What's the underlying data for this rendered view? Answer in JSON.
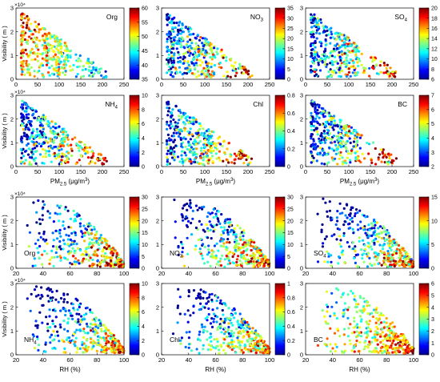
{
  "colormap": [
    "#00008f",
    "#0000ff",
    "#0080ff",
    "#00ffff",
    "#80ff80",
    "#ffff00",
    "#ff8000",
    "#ff0000",
    "#800000"
  ],
  "chart_data": [
    {
      "type": "scatter",
      "species": "Org",
      "xlabel": "",
      "ylabel": "Visibility ( m )",
      "y_exponent": "×10⁴",
      "xlim": [
        0,
        250
      ],
      "ylim": [
        0,
        30000
      ],
      "xticks": [
        "0",
        "50",
        "100",
        "150",
        "200",
        "250"
      ],
      "yticks": [
        "0",
        "1",
        "2",
        "3"
      ],
      "colorbar": {
        "range": [
          35,
          60
        ],
        "ticks": [
          "35",
          "40",
          "45",
          "50",
          "55",
          "60"
        ]
      }
    },
    {
      "type": "scatter",
      "species": "NO3",
      "xlabel": "",
      "ylabel": "",
      "y_exponent": "",
      "xlim": [
        0,
        250
      ],
      "ylim": [
        0,
        30000
      ],
      "xticks": [
        "0",
        "50",
        "100",
        "150",
        "200",
        "250"
      ],
      "yticks": [
        "0",
        "1",
        "2",
        "3"
      ],
      "colorbar": {
        "range": [
          0,
          35
        ],
        "ticks": [
          "0",
          "5",
          "10",
          "15",
          "20",
          "25",
          "30",
          "35"
        ]
      }
    },
    {
      "type": "scatter",
      "species": "SO4",
      "xlabel": "",
      "ylabel": "",
      "y_exponent": "",
      "xlim": [
        0,
        250
      ],
      "ylim": [
        0,
        30000
      ],
      "xticks": [
        "0",
        "50",
        "100",
        "150",
        "200",
        "250"
      ],
      "yticks": [
        "0",
        "1",
        "2",
        "3"
      ],
      "colorbar": {
        "range": [
          6,
          20
        ],
        "ticks": [
          "6",
          "8",
          "10",
          "12",
          "14",
          "16",
          "18",
          "20"
        ]
      }
    },
    {
      "type": "scatter",
      "species": "NH4",
      "xlabel": "PM2.5 (μg/m3)",
      "ylabel": "Visibility ( m )",
      "y_exponent": "×10⁴",
      "xlim": [
        0,
        250
      ],
      "ylim": [
        0,
        30000
      ],
      "xticks": [
        "0",
        "50",
        "100",
        "150",
        "200",
        "250"
      ],
      "yticks": [
        "0",
        "1",
        "2",
        "3"
      ],
      "colorbar": {
        "range": [
          0,
          10
        ],
        "ticks": [
          "0",
          "2",
          "4",
          "6",
          "8",
          "10"
        ]
      }
    },
    {
      "type": "scatter",
      "species": "Chl",
      "xlabel": "PM2.5 (μg/m3)",
      "ylabel": "",
      "y_exponent": "",
      "xlim": [
        0,
        250
      ],
      "ylim": [
        0,
        30000
      ],
      "xticks": [
        "0",
        "50",
        "100",
        "150",
        "200",
        "250"
      ],
      "yticks": [
        "0",
        "1",
        "2",
        "3"
      ],
      "colorbar": {
        "range": [
          0,
          0.8
        ],
        "ticks": [
          "0",
          "0.2",
          "0.4",
          "0.6",
          "0.8"
        ]
      }
    },
    {
      "type": "scatter",
      "species": "BC",
      "xlabel": "PM2.5 (μg/m3)",
      "ylabel": "",
      "y_exponent": "",
      "xlim": [
        0,
        250
      ],
      "ylim": [
        0,
        30000
      ],
      "xticks": [
        "0",
        "50",
        "100",
        "150",
        "200",
        "250"
      ],
      "yticks": [
        "0",
        "1",
        "2",
        "3"
      ],
      "colorbar": {
        "range": [
          2,
          7
        ],
        "ticks": [
          "2",
          "3",
          "4",
          "5",
          "6",
          "7"
        ]
      }
    },
    {
      "type": "scatter",
      "species": "Org",
      "xlabel": "",
      "ylabel": "Visibility ( m )",
      "y_exponent": "×10⁴",
      "xlim": [
        20,
        100
      ],
      "ylim": [
        0,
        30000
      ],
      "xticks": [
        "20",
        "40",
        "60",
        "80",
        "100"
      ],
      "yticks": [
        "0",
        "1",
        "2",
        "3"
      ],
      "colorbar": {
        "range": [
          0,
          30
        ],
        "ticks": [
          "0",
          "5",
          "10",
          "15",
          "20",
          "25",
          "30"
        ]
      }
    },
    {
      "type": "scatter",
      "species": "NO3",
      "xlabel": "",
      "ylabel": "",
      "y_exponent": "",
      "xlim": [
        20,
        100
      ],
      "ylim": [
        0,
        30000
      ],
      "xticks": [
        "20",
        "40",
        "60",
        "80",
        "100"
      ],
      "yticks": [
        "0",
        "1",
        "2",
        "3"
      ],
      "colorbar": {
        "range": [
          0,
          30
        ],
        "ticks": [
          "0",
          "5",
          "10",
          "15",
          "20",
          "25",
          "30"
        ]
      }
    },
    {
      "type": "scatter",
      "species": "SO4",
      "xlabel": "",
      "ylabel": "",
      "y_exponent": "",
      "xlim": [
        20,
        100
      ],
      "ylim": [
        0,
        30000
      ],
      "xticks": [
        "20",
        "40",
        "60",
        "80",
        "100"
      ],
      "yticks": [
        "0",
        "1",
        "2",
        "3"
      ],
      "colorbar": {
        "range": [
          0,
          15
        ],
        "ticks": [
          "0",
          "5",
          "10",
          "15"
        ]
      }
    },
    {
      "type": "scatter",
      "species": "NH4",
      "xlabel": "RH (%)",
      "ylabel": "Visibility ( m )",
      "y_exponent": "×10⁴",
      "xlim": [
        20,
        100
      ],
      "ylim": [
        0,
        30000
      ],
      "xticks": [
        "20",
        "40",
        "60",
        "80",
        "100"
      ],
      "yticks": [
        "0",
        "1",
        "2",
        "3"
      ],
      "colorbar": {
        "range": [
          0,
          10
        ],
        "ticks": [
          "0",
          "2",
          "4",
          "6",
          "8",
          "10"
        ]
      }
    },
    {
      "type": "scatter",
      "species": "Chl",
      "xlabel": "RH (%)",
      "ylabel": "",
      "y_exponent": "",
      "xlim": [
        20,
        100
      ],
      "ylim": [
        0,
        30000
      ],
      "xticks": [
        "20",
        "40",
        "60",
        "80",
        "100"
      ],
      "yticks": [
        "0",
        "1",
        "2",
        "3"
      ],
      "colorbar": {
        "range": [
          0,
          1
        ],
        "ticks": [
          "0",
          "0.2",
          "0.4",
          "0.6",
          "0.8",
          "1"
        ]
      }
    },
    {
      "type": "scatter",
      "species": "BC",
      "xlabel": "RH (%)",
      "ylabel": "",
      "y_exponent": "",
      "xlim": [
        20,
        100
      ],
      "ylim": [
        0,
        30000
      ],
      "xticks": [
        "20",
        "40",
        "60",
        "80",
        "100"
      ],
      "yticks": [
        "0",
        "1",
        "2",
        "3"
      ],
      "colorbar": {
        "range": [
          0,
          6
        ],
        "ticks": [
          "0",
          "1",
          "2",
          "3",
          "4",
          "5",
          "6"
        ]
      }
    }
  ]
}
